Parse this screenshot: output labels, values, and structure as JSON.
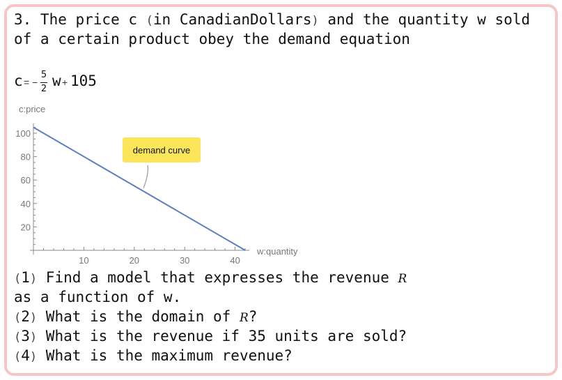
{
  "problem": {
    "line1_start": "3. The price c ",
    "line1_paren_open": "(",
    "line1_middle": "in CanadianDollars",
    "line1_paren_close": ")",
    "line1_end": " and the quantity w sold",
    "line2": "of a certain product obey the demand equation"
  },
  "equation": {
    "lhs": "c",
    "equals": "=",
    "minus": "−",
    "numerator": "5",
    "denominator": "2",
    "var": "w",
    "plus": "+",
    "constant": "105"
  },
  "chart_data": {
    "type": "line",
    "xlabel": "w:quantity",
    "ylabel": "c:price",
    "xlim": [
      0,
      43
    ],
    "ylim": [
      0,
      107
    ],
    "x_ticks": [
      10,
      20,
      30,
      40
    ],
    "y_ticks": [
      20,
      40,
      60,
      80,
      100
    ],
    "series": [
      {
        "x": [
          0,
          42
        ],
        "values": [
          105,
          0
        ],
        "color": "#5b7fbf"
      }
    ],
    "annotation": {
      "text": "demand curve",
      "x": 22,
      "y": 50
    },
    "grid": false
  },
  "questions": [
    {
      "num": "1",
      "text": " Find a model that expresses the revenue ",
      "symbol": "R"
    },
    {
      "text": "as a function of w."
    },
    {
      "num": "2",
      "text": " What is the domain of ",
      "symbol": "R",
      "tail": "?"
    },
    {
      "num": "3",
      "text": " What is the revenue if 35 units are sold?"
    },
    {
      "num": "4",
      "text": " What is the maximum revenue?"
    }
  ]
}
